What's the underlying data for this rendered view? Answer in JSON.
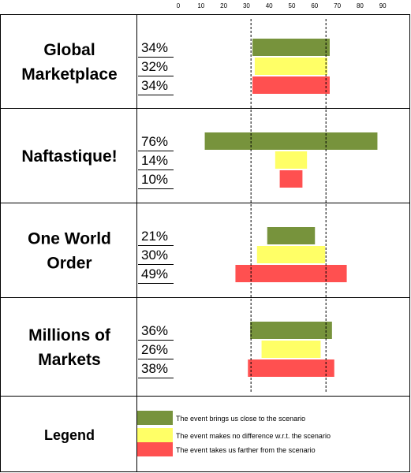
{
  "chart_data": {
    "type": "bar",
    "x_ticks": [
      0,
      10,
      20,
      30,
      40,
      50,
      60,
      70,
      80,
      90
    ],
    "xlim": [
      0,
      90
    ],
    "reference_lines": [
      32,
      65
    ],
    "grid": false,
    "series_names": [
      "The event brings us close to the scenario",
      "The event makes no difference w.r.t. the scenario",
      "The event takes us farther from the scenario"
    ],
    "panels": [
      {
        "label": "Global Marketplace",
        "values": [
          34,
          32,
          34
        ],
        "percent_labels": [
          "34%",
          "32%",
          "34%"
        ]
      },
      {
        "label": "Naftastique!",
        "values": [
          76,
          14,
          10
        ],
        "percent_labels": [
          "76%",
          "14%",
          "10%"
        ]
      },
      {
        "label": "One World Order",
        "values": [
          21,
          30,
          49
        ],
        "percent_labels": [
          "21%",
          "30%",
          "49%"
        ]
      },
      {
        "label": "Millions of Markets",
        "values": [
          36,
          26,
          38
        ],
        "percent_labels": [
          "36%",
          "26%",
          "38%"
        ]
      }
    ]
  },
  "legend": {
    "title": "Legend",
    "items": [
      "The event brings us close to the scenario",
      "The event makes no difference w.r.t. the scenario",
      "The event takes us farther from the scenario"
    ]
  },
  "colors": {
    "close": "#77933c",
    "neutral": "#ffff66",
    "farther": "#ff5050"
  }
}
